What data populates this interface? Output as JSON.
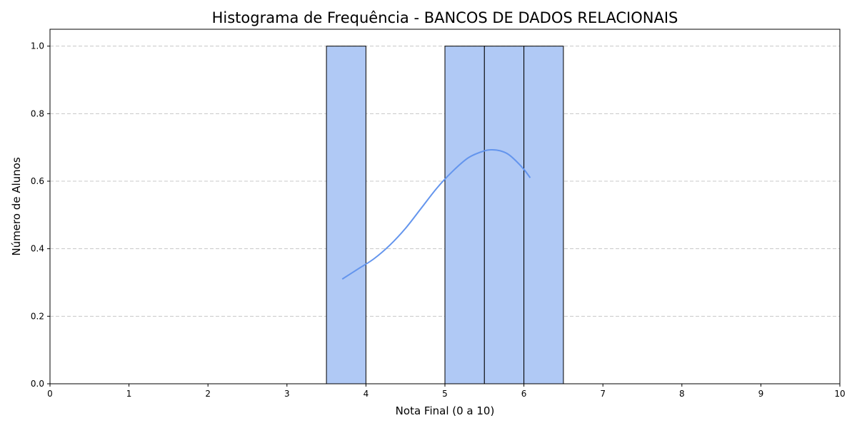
{
  "chart_data": {
    "type": "bar",
    "title": "Histograma de Frequência - BANCOS DE DADOS RELACIONAIS",
    "xlabel": "Nota Final (0 a 10)",
    "ylabel": "Número de Alunos",
    "xlim": [
      0,
      10
    ],
    "ylim": [
      0,
      1.05
    ],
    "xticks": [
      "0",
      "1",
      "2",
      "3",
      "4",
      "5",
      "6",
      "7",
      "8",
      "9",
      "10"
    ],
    "yticks": [
      "0.0",
      "0.2",
      "0.4",
      "0.6",
      "0.8",
      "1.0"
    ],
    "grid": "y-dashed",
    "bins": [
      {
        "start": 3.5,
        "end": 4.0,
        "count": 1
      },
      {
        "start": 5.0,
        "end": 5.5,
        "count": 1
      },
      {
        "start": 5.5,
        "end": 6.0,
        "count": 1
      },
      {
        "start": 6.0,
        "end": 6.5,
        "count": 1
      }
    ],
    "kde": {
      "x": [
        3.7,
        3.9,
        4.1,
        4.3,
        4.5,
        4.7,
        4.9,
        5.1,
        5.3,
        5.5,
        5.6,
        5.7,
        5.8,
        5.9,
        6.0,
        6.08
      ],
      "y": [
        0.31,
        0.34,
        0.37,
        0.41,
        0.46,
        0.52,
        0.58,
        0.63,
        0.67,
        0.69,
        0.693,
        0.69,
        0.68,
        0.66,
        0.635,
        0.61
      ]
    },
    "colors": {
      "bar_fill": "#b0c9f5",
      "bar_edge": "#000000",
      "kde_line": "#6495ed",
      "grid": "#c8c8c8"
    }
  }
}
